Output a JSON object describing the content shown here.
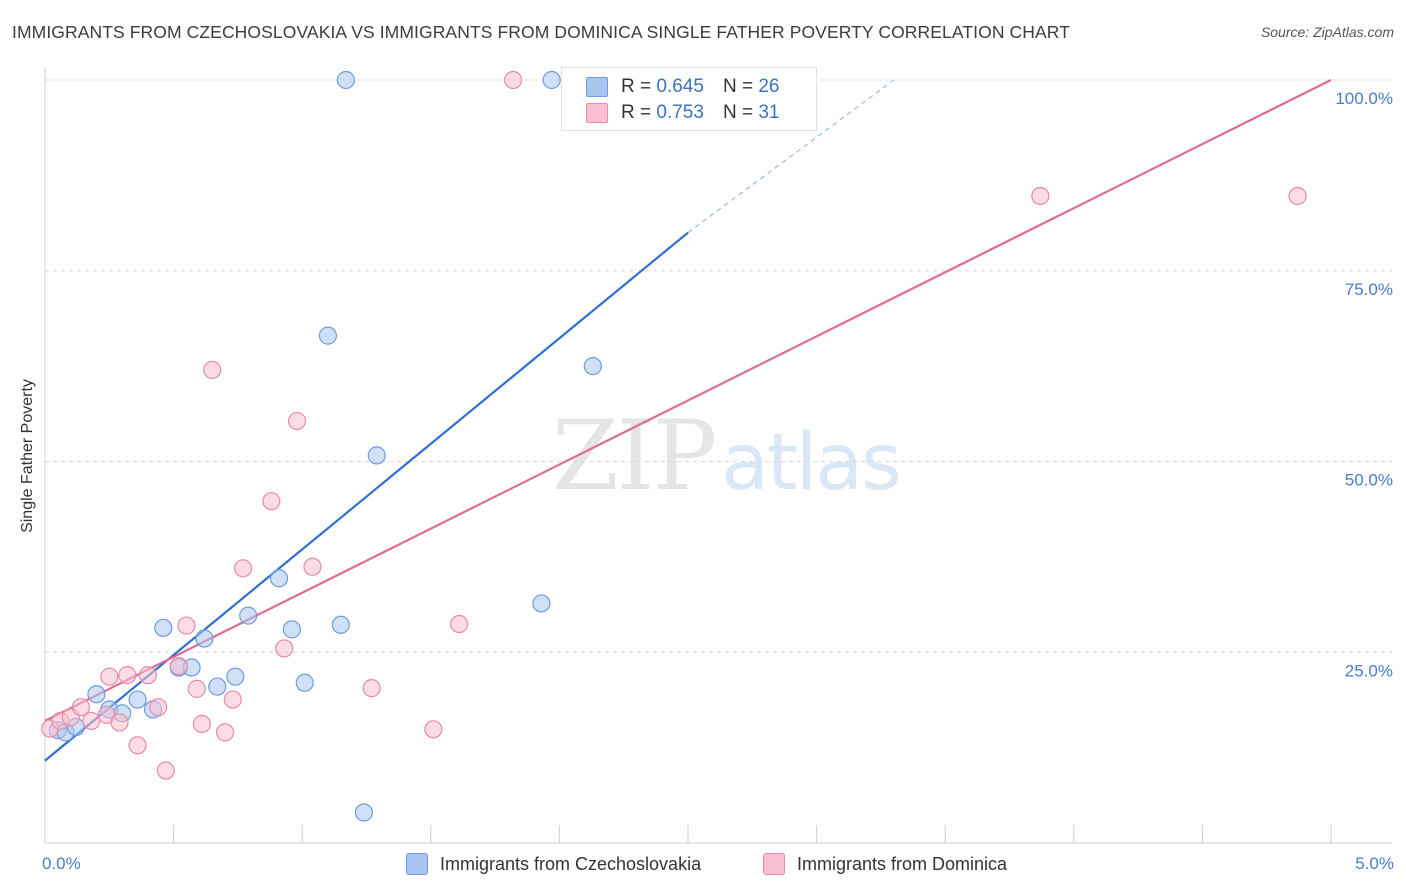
{
  "title": "IMMIGRANTS FROM CZECHOSLOVAKIA VS IMMIGRANTS FROM DOMINICA SINGLE FATHER POVERTY CORRELATION CHART",
  "source": "Source: ZipAtlas.com",
  "watermark": {
    "zip": "ZIP",
    "atlas": "atlas"
  },
  "legend": {
    "rows": [
      {
        "r_label": "R =",
        "r_value": "0.645",
        "n_label": "N =",
        "n_value": "26",
        "color": "#a9c6f0",
        "border": "#6f9be0"
      },
      {
        "r_label": "R =",
        "r_value": "0.753",
        "n_label": "N =",
        "n_value": "31",
        "color": "#f8bfd0",
        "border": "#e98aa8"
      }
    ]
  },
  "chart_data": {
    "type": "scatter",
    "title": "IMMIGRANTS FROM CZECHOSLOVAKIA VS IMMIGRANTS FROM DOMINICA SINGLE FATHER POVERTY CORRELATION CHART",
    "xlabel": "",
    "ylabel": "Single Father Poverty",
    "xlim": [
      0,
      5
    ],
    "ylim": [
      0,
      100
    ],
    "x_tick_labels": [
      "0.0%",
      "5.0%"
    ],
    "y_ticks": [
      25,
      50,
      75,
      100
    ],
    "y_tick_labels": [
      "25.0%",
      "50.0%",
      "75.0%",
      "100.0%"
    ],
    "grid": true,
    "series": [
      {
        "name": "Immigrants from Czechoslovakia",
        "color": "#6f9be0",
        "fill": "#a9c6f0",
        "line_color": "#2f6fd0",
        "regression": {
          "x0": 0.0,
          "y0": 10.8,
          "x1": 2.5,
          "y1": 80.0,
          "dash_to_x": 3.3,
          "dash_to_y": 100.0
        },
        "points": [
          [
            0.05,
            14.8
          ],
          [
            0.08,
            14.5
          ],
          [
            0.12,
            15.2
          ],
          [
            0.2,
            19.5
          ],
          [
            0.25,
            17.5
          ],
          [
            0.3,
            17.0
          ],
          [
            0.36,
            18.8
          ],
          [
            0.42,
            17.5
          ],
          [
            0.46,
            28.2
          ],
          [
            0.52,
            23.0
          ],
          [
            0.57,
            23.0
          ],
          [
            0.62,
            26.8
          ],
          [
            0.67,
            20.5
          ],
          [
            0.74,
            21.8
          ],
          [
            0.79,
            29.8
          ],
          [
            0.91,
            34.7
          ],
          [
            0.96,
            28.0
          ],
          [
            1.01,
            21.0
          ],
          [
            1.1,
            66.5
          ],
          [
            1.15,
            28.6
          ],
          [
            1.17,
            100.0
          ],
          [
            1.24,
            4.0
          ],
          [
            1.29,
            50.8
          ],
          [
            1.93,
            31.4
          ],
          [
            1.97,
            100.0
          ],
          [
            2.13,
            62.5
          ]
        ]
      },
      {
        "name": "Immigrants from Dominica",
        "color": "#e98aa8",
        "fill": "#f8bfd0",
        "line_color": "#e06b96",
        "regression": {
          "x0": 0.0,
          "y0": 16.0,
          "x1": 5.0,
          "y1": 100.0
        },
        "points": [
          [
            0.02,
            15.0
          ],
          [
            0.06,
            16.0
          ],
          [
            0.1,
            16.5
          ],
          [
            0.14,
            17.8
          ],
          [
            0.18,
            16.0
          ],
          [
            0.24,
            16.8
          ],
          [
            0.25,
            21.8
          ],
          [
            0.29,
            15.8
          ],
          [
            0.32,
            22.0
          ],
          [
            0.36,
            12.8
          ],
          [
            0.4,
            22.0
          ],
          [
            0.44,
            17.8
          ],
          [
            0.47,
            9.5
          ],
          [
            0.52,
            23.2
          ],
          [
            0.55,
            28.5
          ],
          [
            0.59,
            20.2
          ],
          [
            0.61,
            15.6
          ],
          [
            0.65,
            62.0
          ],
          [
            0.7,
            14.5
          ],
          [
            0.73,
            18.8
          ],
          [
            0.77,
            36.0
          ],
          [
            0.88,
            44.8
          ],
          [
            0.93,
            25.5
          ],
          [
            0.98,
            55.3
          ],
          [
            1.04,
            36.2
          ],
          [
            1.27,
            20.3
          ],
          [
            1.51,
            14.9
          ],
          [
            1.61,
            28.7
          ],
          [
            1.82,
            100.0
          ],
          [
            3.87,
            84.8
          ],
          [
            4.87,
            84.8
          ]
        ]
      }
    ]
  }
}
